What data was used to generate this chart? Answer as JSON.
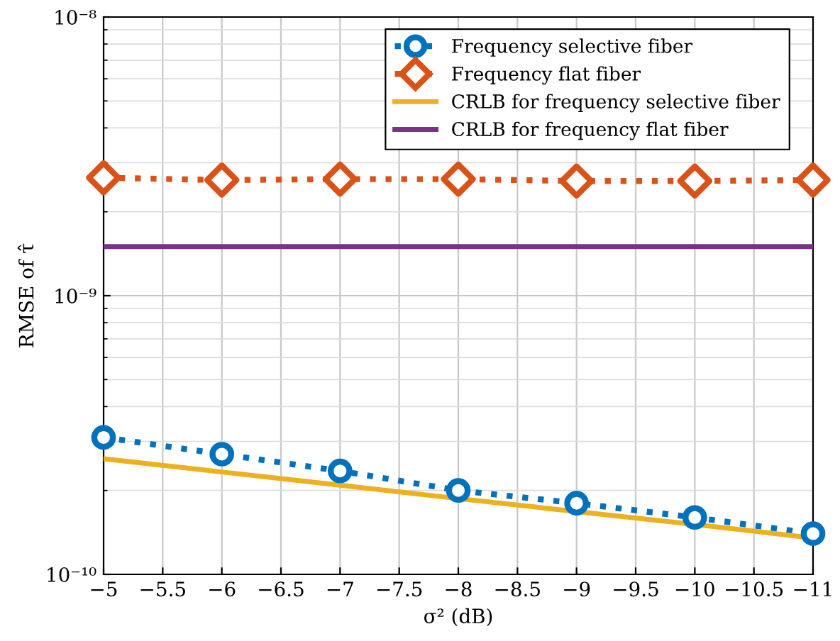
{
  "chart_data": {
    "type": "line",
    "xlabel": "σ² (dB)",
    "ylabel": "RMSE of τ̂",
    "log": "y",
    "grid": true,
    "legend": "top right",
    "xlim": [
      -5,
      -11
    ],
    "xticks": [
      -5,
      -5.5,
      -6,
      -6.5,
      -7,
      -7.5,
      -8,
      -8.5,
      -9,
      -9.5,
      -10,
      -10.5,
      -11
    ],
    "ylim": [
      1e-10,
      1e-08
    ],
    "yticks": [
      {
        "value": 1e-10,
        "label": "10⁻¹⁰"
      },
      {
        "value": 1e-09,
        "label": "10⁻⁹"
      },
      {
        "value": 1e-08,
        "label": "10⁻⁸"
      }
    ],
    "x": [
      -5,
      -6,
      -7,
      -8,
      -9,
      -10,
      -11
    ],
    "series": [
      {
        "name": "Frequency selective fiber",
        "color": "#0072bd",
        "marker": "circle",
        "line_style": "dotted",
        "values": [
          3.1e-10,
          2.7e-10,
          2.35e-10,
          2e-10,
          1.8e-10,
          1.6e-10,
          1.4e-10
        ]
      },
      {
        "name": "Frequency flat fiber",
        "color": "#d95319",
        "marker": "diamond",
        "line_style": "dotted",
        "values": [
          2.65e-09,
          2.6e-09,
          2.62e-09,
          2.62e-09,
          2.58e-09,
          2.58e-09,
          2.6e-09
        ]
      },
      {
        "name": "CRLB for frequency selective fiber",
        "color": "#edb120",
        "marker": "none",
        "line_style": "solid",
        "values": [
          2.6e-10,
          2.33e-10,
          2.09e-10,
          1.87e-10,
          1.68e-10,
          1.51e-10,
          1.35e-10
        ]
      },
      {
        "name": "CRLB for frequency flat fiber",
        "color": "#7e2f8e",
        "marker": "none",
        "line_style": "solid",
        "values": [
          1.5e-09,
          1.5e-09,
          1.5e-09,
          1.5e-09,
          1.5e-09,
          1.5e-09,
          1.5e-09
        ]
      }
    ]
  }
}
